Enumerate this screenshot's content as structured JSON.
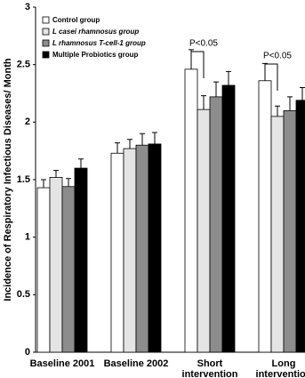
{
  "chart_data": {
    "type": "bar",
    "ylabel": "Incidence of Respiratory Infectious Diseases/ Month",
    "categories": [
      "Baseline 2001",
      "Baseline 2002",
      "Short\nintervention",
      "Long\nintervention"
    ],
    "series": [
      {
        "name": "Control group",
        "color": "#ffffff",
        "values": [
          1.43,
          1.73,
          2.46,
          2.36
        ],
        "errors": [
          0.07,
          0.09,
          0.17,
          0.15
        ]
      },
      {
        "name": "L casei rhamnosus group",
        "color": "#e4e4e4",
        "values": [
          1.52,
          1.77,
          2.11,
          2.05
        ],
        "errors": [
          0.06,
          0.08,
          0.12,
          0.09
        ]
      },
      {
        "name": "L rhamnosus T-cell-1 group",
        "color": "#8c8c8c",
        "values": [
          1.44,
          1.8,
          2.22,
          2.1
        ],
        "errors": [
          0.07,
          0.1,
          0.13,
          0.12
        ]
      },
      {
        "name": "Multiple Probiotics group",
        "color": "#000000",
        "values": [
          1.6,
          1.81,
          2.32,
          2.19
        ],
        "errors": [
          0.08,
          0.1,
          0.12,
          0.11
        ]
      }
    ],
    "annotations": [
      "P<0.05",
      "P<0.05"
    ],
    "ylim": [
      0,
      3
    ],
    "yticks": [
      0,
      0.5,
      1,
      1.5,
      2,
      2.5,
      3
    ],
    "legend": "upper left"
  }
}
